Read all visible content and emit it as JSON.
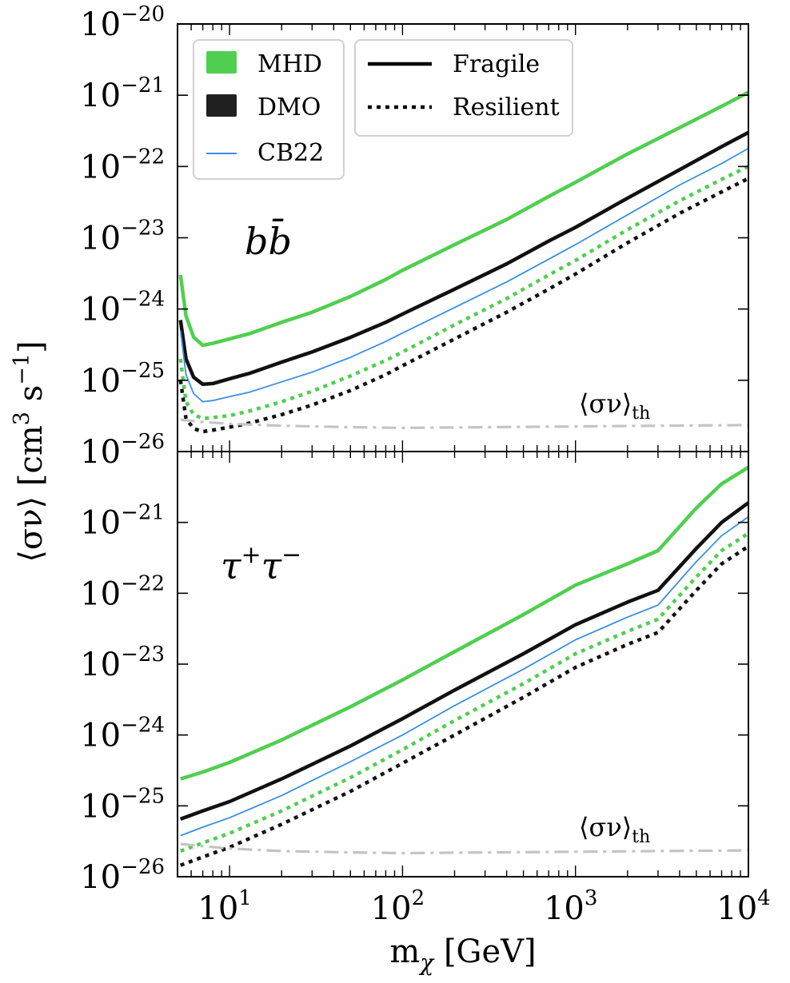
{
  "chart_data": {
    "type": "line",
    "xlabel": "m",
    "xlabel_sub": "χ",
    "xlabel_unit": "[GeV]",
    "ylabel": "⟨σν⟩ [cm",
    "ylabel_exp1": "3",
    "ylabel_mid": " s",
    "ylabel_exp2": "−1",
    "ylabel_end": "]",
    "x_scale": "log",
    "y_scale": "log",
    "xlim": [
      5,
      10000
    ],
    "x_ticks": [
      {
        "value": 10,
        "base": "10",
        "exp": "1"
      },
      {
        "value": 100,
        "base": "10",
        "exp": "2"
      },
      {
        "value": 1000,
        "base": "10",
        "exp": "3"
      },
      {
        "value": 10000,
        "base": "10",
        "exp": "4"
      }
    ],
    "legend": {
      "placement": "top-left",
      "datasets": [
        {
          "name": "MHD",
          "color": "#4fcf4f",
          "style": "patch"
        },
        {
          "name": "DMO",
          "color": "#202020",
          "style": "patch"
        },
        {
          "name": "CB22",
          "color": "#3a8fe0",
          "style": "line"
        }
      ],
      "models": [
        {
          "name": "Fragile",
          "style": "solid"
        },
        {
          "name": "Resilient",
          "style": "dotted"
        }
      ]
    },
    "colors": {
      "MHD": "#4fcf4f",
      "DMO": "#111111",
      "CB22": "#3a8fe0",
      "thermal": "#c4c4c4"
    },
    "panels": [
      {
        "id": "bb",
        "label_main": "b",
        "label_bar": "b̄",
        "ylim_exp": [
          -26,
          -20
        ],
        "y_ticks": [
          {
            "exp": -26,
            "base": "10",
            "label": "−26"
          },
          {
            "exp": -25,
            "base": "10",
            "label": "−25"
          },
          {
            "exp": -24,
            "base": "10",
            "label": "−24"
          },
          {
            "exp": -23,
            "base": "10",
            "label": "−23"
          },
          {
            "exp": -22,
            "base": "10",
            "label": "−22"
          },
          {
            "exp": -21,
            "base": "10",
            "label": "−21"
          },
          {
            "exp": -20,
            "base": "10",
            "label": "−20"
          }
        ],
        "thermal_label": "⟨σν⟩",
        "thermal_sub": "th",
        "series": [
          {
            "name": "MHD Fragile",
            "dataset": "MHD",
            "model": "Fragile",
            "x": [
              5.2,
              5.6,
              6.2,
              7,
              8,
              10,
              13,
              20,
              30,
              50,
              80,
              100,
              200,
              400,
              700,
              1000,
              2000,
              4000,
              7000,
              10000
            ],
            "y": [
              3e-24,
              8e-25,
              4e-25,
              3.1e-25,
              3.3e-25,
              3.8e-25,
              4.5e-25,
              6.5e-25,
              9e-25,
              1.5e-24,
              2.6e-24,
              3.5e-24,
              8e-24,
              1.8e-23,
              3.8e-23,
              6e-23,
              1.5e-22,
              3.5e-22,
              7e-22,
              1.1e-21
            ]
          },
          {
            "name": "DMO Fragile",
            "dataset": "DMO",
            "model": "Fragile",
            "x": [
              5.2,
              5.6,
              6.2,
              7,
              8,
              10,
              13,
              20,
              30,
              50,
              80,
              100,
              200,
              400,
              700,
              1000,
              2000,
              4000,
              7000,
              10000
            ],
            "y": [
              7e-25,
              2e-25,
              1.1e-25,
              8.8e-26,
              9e-26,
              1.05e-25,
              1.25e-25,
              1.8e-25,
              2.5e-25,
              4e-25,
              6.5e-25,
              8.5e-25,
              1.9e-24,
              4.3e-24,
              9e-24,
              1.4e-23,
              3.6e-23,
              9e-23,
              1.9e-22,
              3e-22
            ]
          },
          {
            "name": "CB22 Fragile",
            "dataset": "CB22",
            "model": "Fragile",
            "x": [
              5.2,
              5.6,
              6.2,
              7,
              8,
              10,
              13,
              20,
              30,
              50,
              80,
              100,
              200,
              400,
              700,
              1000,
              2000,
              4000,
              7000,
              10000
            ],
            "y": [
              5e-25,
              1.2e-25,
              6.5e-26,
              5e-26,
              5.2e-26,
              5.9e-26,
              6.8e-26,
              9.5e-26,
              1.3e-25,
              2.1e-25,
              3.5e-25,
              4.6e-25,
              1.05e-24,
              2.4e-24,
              5e-24,
              8e-24,
              2.1e-23,
              5.5e-23,
              1.1e-22,
              1.8e-22
            ]
          },
          {
            "name": "MHD Resilient",
            "dataset": "MHD",
            "model": "Resilient",
            "x": [
              5.2,
              5.6,
              6.2,
              7,
              8,
              10,
              13,
              20,
              30,
              50,
              80,
              100,
              200,
              400,
              700,
              1000,
              2000,
              4000,
              7000,
              10000
            ],
            "y": [
              2e-25,
              5e-26,
              3.3e-26,
              2.9e-26,
              3e-26,
              3.2e-26,
              3.7e-26,
              5e-26,
              7e-26,
              1.15e-25,
              1.9e-25,
              2.5e-25,
              6e-25,
              1.4e-24,
              3e-24,
              4.8e-24,
              1.3e-23,
              3.3e-23,
              6.6e-23,
              1e-22
            ]
          },
          {
            "name": "DMO Resilient",
            "dataset": "DMO",
            "model": "Resilient",
            "x": [
              5.2,
              5.6,
              6.2,
              7,
              8,
              10,
              13,
              20,
              30,
              50,
              80,
              100,
              200,
              400,
              700,
              1000,
              2000,
              4000,
              7000,
              10000
            ],
            "y": [
              1e-25,
              2.9e-26,
              2.1e-26,
              1.9e-26,
              2e-26,
              2.2e-26,
              2.5e-26,
              3.3e-26,
              4.5e-26,
              7.2e-26,
              1.2e-25,
              1.6e-25,
              3.8e-25,
              9e-25,
              1.9e-24,
              3.1e-24,
              8.5e-24,
              2.2e-23,
              4.4e-23,
              6.8e-23
            ]
          },
          {
            "name": "Thermal relic",
            "dataset": "thermal",
            "model": "dashdot",
            "x": [
              5.2,
              7,
              10,
              20,
              50,
              100,
              300,
              1000,
              3000,
              10000
            ],
            "y": [
              2.8e-26,
              2.6e-26,
              2.45e-26,
              2.3e-26,
              2.2e-26,
              2.15e-26,
              2.2e-26,
              2.25e-26,
              2.3e-26,
              2.35e-26
            ]
          }
        ]
      },
      {
        "id": "tautau",
        "label_main": "τ",
        "label_sup1": "+",
        "label_mid": "τ",
        "label_sup2": "−",
        "ylim_exp": [
          -26,
          -20
        ],
        "y_ticks": [
          {
            "exp": -26,
            "base": "10",
            "label": "−26"
          },
          {
            "exp": -25,
            "base": "10",
            "label": "−25"
          },
          {
            "exp": -24,
            "base": "10",
            "label": "−24"
          },
          {
            "exp": -23,
            "base": "10",
            "label": "−23"
          },
          {
            "exp": -22,
            "base": "10",
            "label": "−22"
          },
          {
            "exp": -21,
            "base": "10",
            "label": "−21"
          }
        ],
        "thermal_label": "⟨σν⟩",
        "thermal_sub": "th",
        "series": [
          {
            "name": "MHD Fragile",
            "dataset": "MHD",
            "model": "Fragile",
            "x": [
              5.2,
              7,
              10,
              20,
              50,
              100,
              200,
              500,
              1000,
              2000,
              3000,
              5000,
              7000,
              10000
            ],
            "y": [
              2.4e-25,
              3e-25,
              4.1e-25,
              8.5e-25,
              2.5e-24,
              6e-24,
              1.5e-23,
              5e-23,
              1.3e-22,
              2.6e-22,
              4e-22,
              1.6e-21,
              3.5e-21,
              6e-21
            ]
          },
          {
            "name": "DMO Fragile",
            "dataset": "DMO",
            "model": "Fragile",
            "x": [
              5.2,
              7,
              10,
              20,
              50,
              100,
              200,
              500,
              1000,
              2000,
              3000,
              5000,
              7000,
              10000
            ],
            "y": [
              6.5e-26,
              8.5e-26,
              1.15e-25,
              2.4e-25,
              7e-25,
              1.7e-24,
              4.3e-24,
              1.4e-23,
              3.6e-23,
              7.5e-23,
              1.1e-22,
              4.3e-22,
              1e-21,
              1.9e-21
            ]
          },
          {
            "name": "CB22 Fragile",
            "dataset": "CB22",
            "model": "Fragile",
            "x": [
              5.2,
              7,
              10,
              20,
              50,
              100,
              200,
              500,
              1000,
              2000,
              3000,
              5000,
              7000,
              10000
            ],
            "y": [
              3.8e-26,
              5e-26,
              6.8e-26,
              1.4e-25,
              4.2e-25,
              1e-24,
              2.6e-24,
              8.5e-24,
              2.2e-23,
              4.6e-23,
              6.8e-23,
              2.8e-22,
              6.5e-22,
              1.2e-21
            ]
          },
          {
            "name": "MHD Resilient",
            "dataset": "MHD",
            "model": "Resilient",
            "x": [
              5.2,
              7,
              10,
              20,
              50,
              100,
              200,
              500,
              1000,
              2000,
              3000,
              5000,
              7000,
              10000
            ],
            "y": [
              2.3e-26,
              3e-26,
              4.1e-26,
              8.5e-26,
              2.5e-25,
              6.2e-25,
              1.6e-24,
              5.3e-24,
              1.4e-23,
              2.9e-23,
              4.3e-23,
              1.7e-22,
              4e-22,
              7e-22
            ]
          },
          {
            "name": "DMO Resilient",
            "dataset": "DMO",
            "model": "Resilient",
            "x": [
              5.2,
              7,
              10,
              20,
              50,
              100,
              200,
              500,
              1000,
              2000,
              3000,
              5000,
              7000,
              10000
            ],
            "y": [
              1.45e-26,
              1.9e-26,
              2.6e-26,
              5.5e-26,
              1.6e-25,
              4e-25,
              1e-24,
              3.4e-24,
              9e-24,
              1.9e-23,
              2.8e-23,
              1.1e-22,
              2.6e-22,
              4.6e-22
            ]
          },
          {
            "name": "Thermal relic",
            "dataset": "thermal",
            "model": "dashdot",
            "x": [
              5.2,
              7,
              10,
              20,
              50,
              100,
              300,
              1000,
              3000,
              10000
            ],
            "y": [
              2.9e-26,
              2.7e-26,
              2.5e-26,
              2.3e-26,
              2.2e-26,
              2.15e-26,
              2.2e-26,
              2.25e-26,
              2.3e-26,
              2.35e-26
            ]
          }
        ]
      }
    ]
  }
}
